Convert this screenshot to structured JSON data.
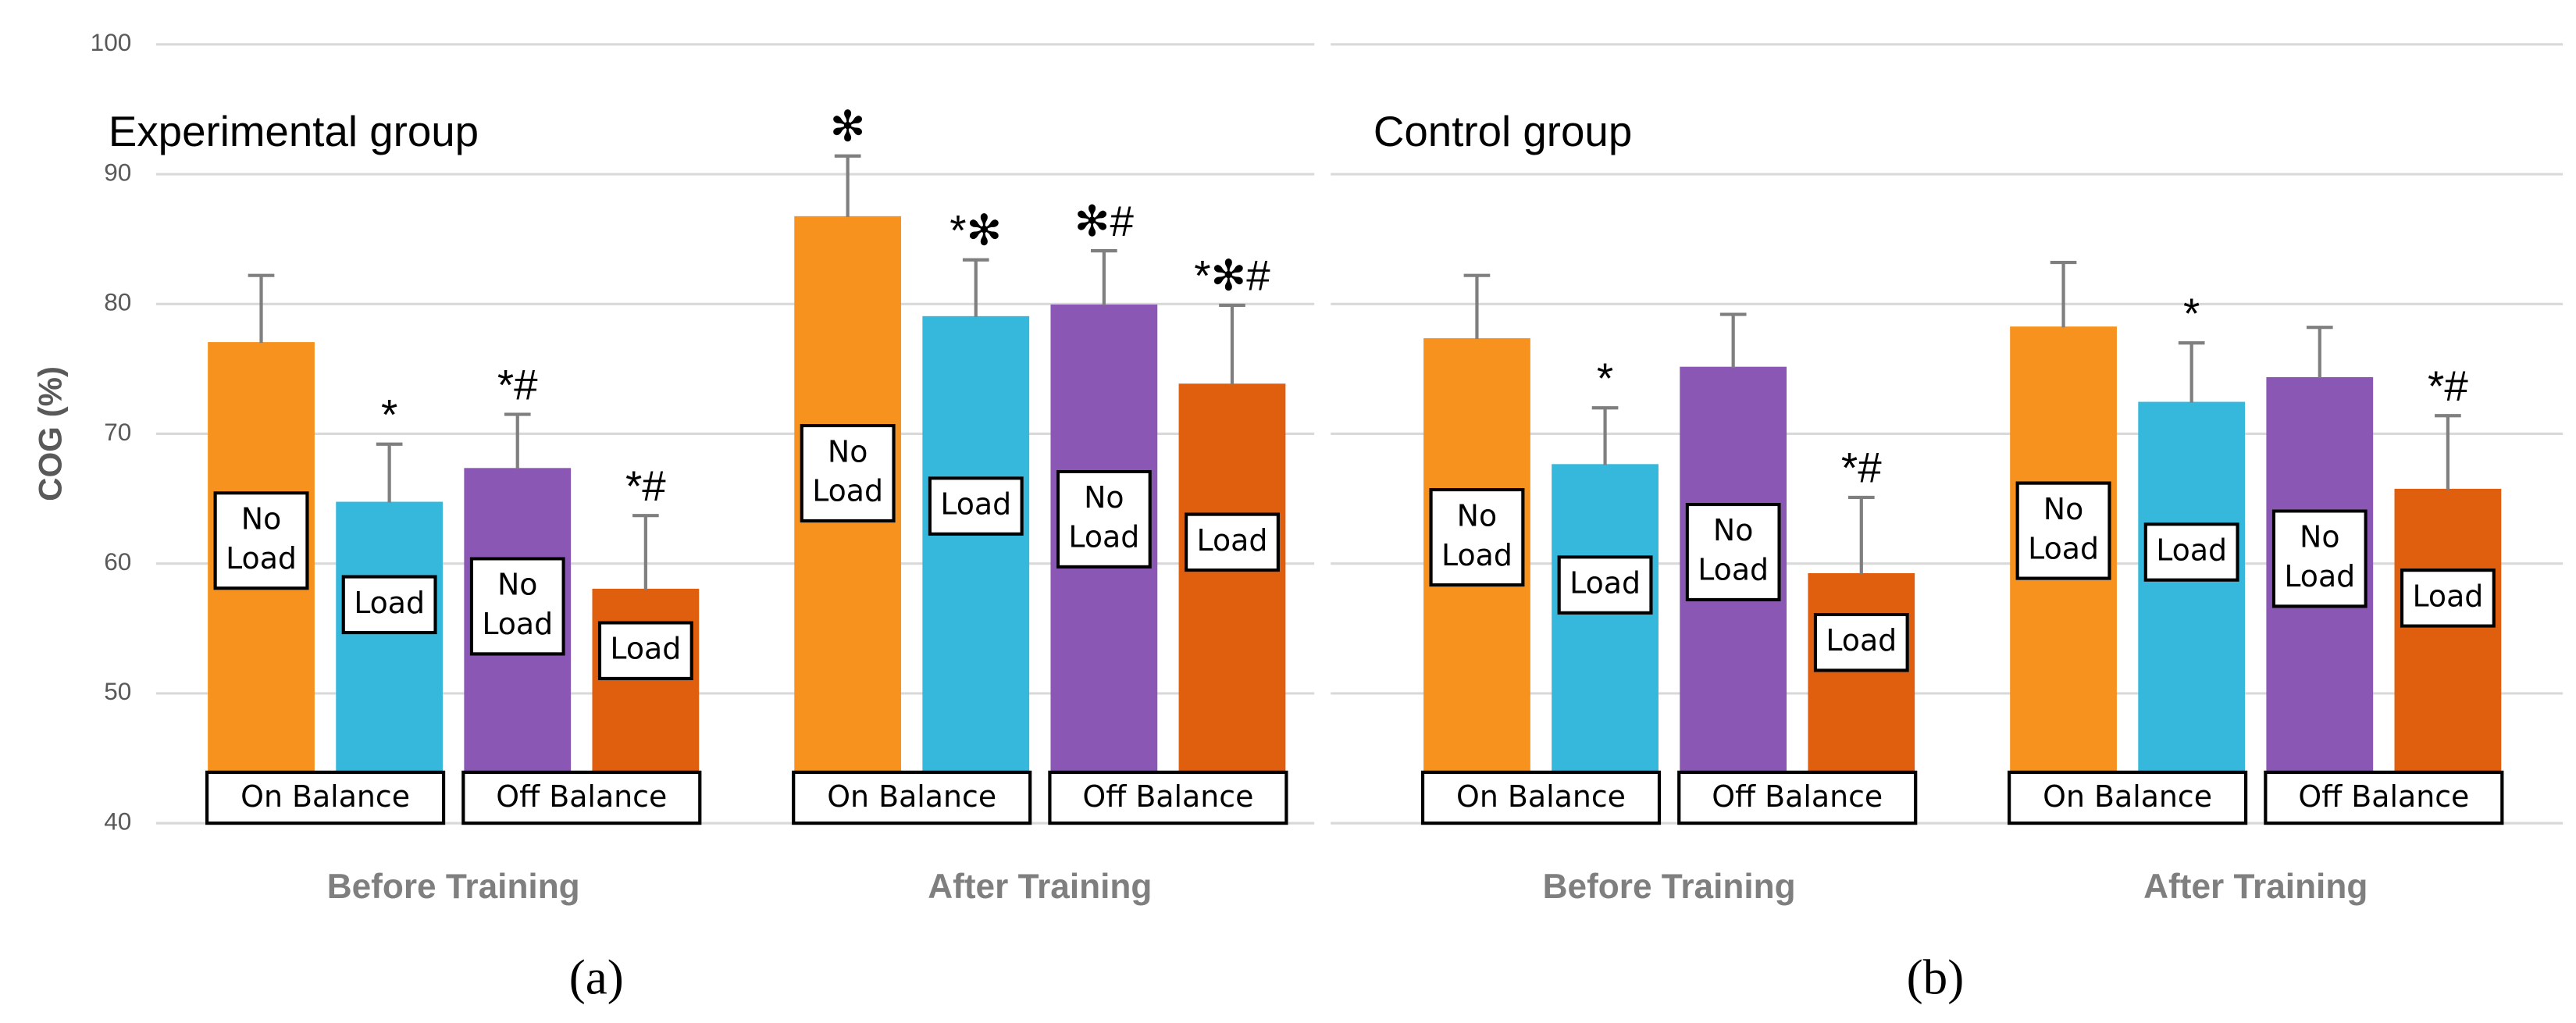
{
  "chart_data": [
    {
      "type": "bar",
      "title": "Experimental group",
      "panel": "(a)",
      "ylabel": "COG (%)",
      "ylim": [
        40,
        100
      ],
      "yticks": [
        40,
        50,
        60,
        70,
        80,
        90,
        100
      ],
      "grid": true,
      "categories": [
        "Before Training",
        "After Training"
      ],
      "conditions": [
        "On Balance",
        "Off Balance"
      ],
      "series": [
        {
          "name": "No Load",
          "color": "#f7921e",
          "values": [
            77.0,
            86.7
          ],
          "errors": [
            5.2,
            4.7
          ],
          "annotations": [
            null,
            "✻"
          ]
        },
        {
          "name": "Load",
          "color": "#35b8dc",
          "values": [
            64.7,
            79.0
          ],
          "errors": [
            4.5,
            4.4
          ],
          "annotations": [
            "*",
            "*✻"
          ]
        },
        {
          "name": "No Load",
          "color": "#8a58b4",
          "values": [
            67.3,
            79.9
          ],
          "errors": [
            4.2,
            4.2
          ],
          "annotations": [
            "*#",
            "✻#"
          ]
        },
        {
          "name": "Load",
          "color": "#df5f0f",
          "values": [
            58.0,
            73.8
          ],
          "errors": [
            5.7,
            6.1
          ],
          "annotations": [
            "*#",
            "*✻#"
          ]
        }
      ]
    },
    {
      "type": "bar",
      "title": "Control group",
      "panel": "(b)",
      "ylim": [
        40,
        100
      ],
      "grid": true,
      "categories": [
        "Before Training",
        "After Training"
      ],
      "conditions": [
        "On Balance",
        "Off Balance"
      ],
      "series": [
        {
          "name": "No Load",
          "color": "#f7921e",
          "values": [
            77.3,
            78.2
          ],
          "errors": [
            4.9,
            5.0
          ],
          "annotations": [
            null,
            null
          ]
        },
        {
          "name": "Load",
          "color": "#35b8dc",
          "values": [
            67.6,
            72.4
          ],
          "errors": [
            4.4,
            4.6
          ],
          "annotations": [
            "*",
            "*"
          ]
        },
        {
          "name": "No Load",
          "color": "#8a58b4",
          "values": [
            75.1,
            74.3
          ],
          "errors": [
            4.1,
            3.9
          ],
          "annotations": [
            null,
            null
          ]
        },
        {
          "name": "Load",
          "color": "#df5f0f",
          "values": [
            59.2,
            65.7
          ],
          "errors": [
            5.9,
            5.7
          ],
          "annotations": [
            "*#",
            "*#"
          ]
        }
      ]
    }
  ]
}
